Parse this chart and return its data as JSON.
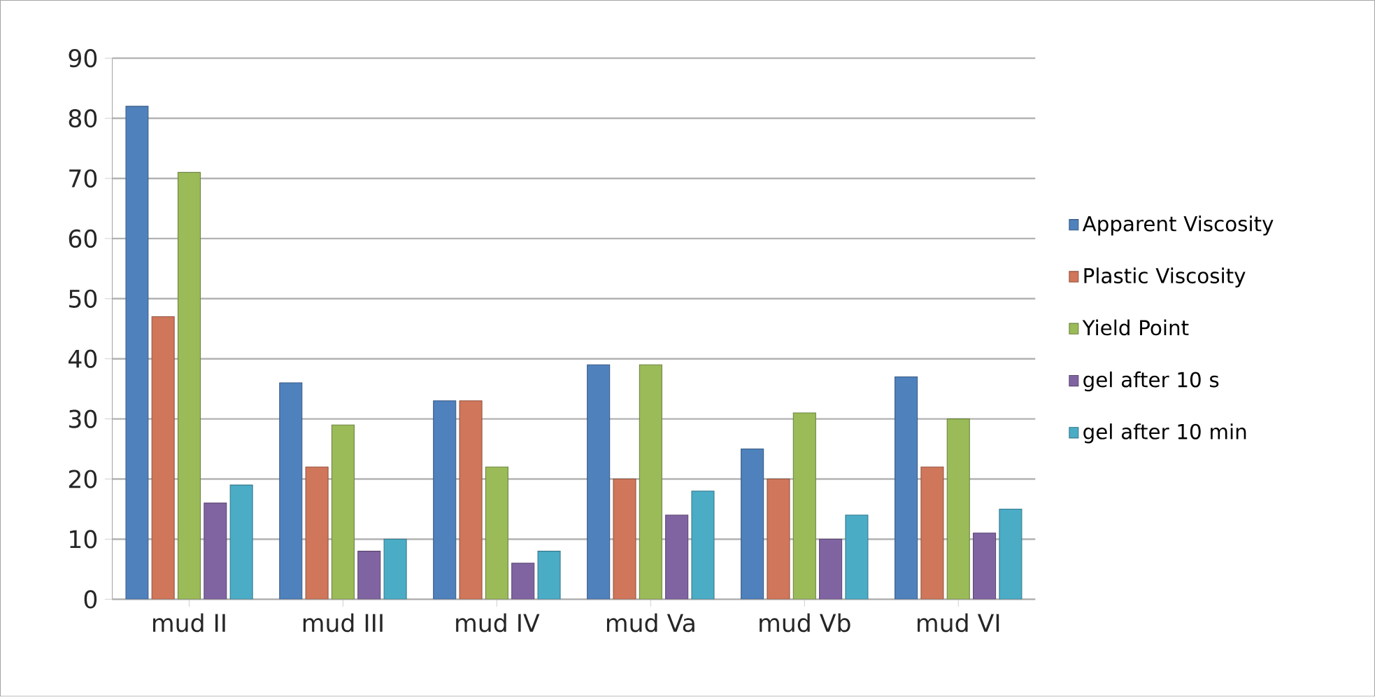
{
  "chart_data": {
    "type": "bar",
    "categories": [
      "mud II",
      "mud III",
      "mud IV",
      "mud Va",
      "mud Vb",
      "mud VI"
    ],
    "series": [
      {
        "name": "Apparent Viscosity",
        "color": "#4f81bd",
        "values": [
          82,
          36,
          33,
          39,
          25,
          37
        ]
      },
      {
        "name": "Plastic Viscosity",
        "color": "#d0765a",
        "values": [
          47,
          22,
          33,
          20,
          20,
          22
        ]
      },
      {
        "name": "Yield Point",
        "color": "#9bbb59",
        "values": [
          71,
          29,
          22,
          39,
          31,
          30
        ]
      },
      {
        "name": "gel after 10 s",
        "color": "#8064a2",
        "values": [
          16,
          8,
          6,
          14,
          10,
          11
        ]
      },
      {
        "name": "gel after 10 min",
        "color": "#4bacc6",
        "values": [
          19,
          10,
          8,
          18,
          14,
          15
        ]
      }
    ],
    "ylim": [
      0,
      90
    ],
    "yticks": [
      0,
      10,
      20,
      30,
      40,
      50,
      60,
      70,
      80,
      90
    ],
    "grid": "y",
    "legend": "right"
  }
}
